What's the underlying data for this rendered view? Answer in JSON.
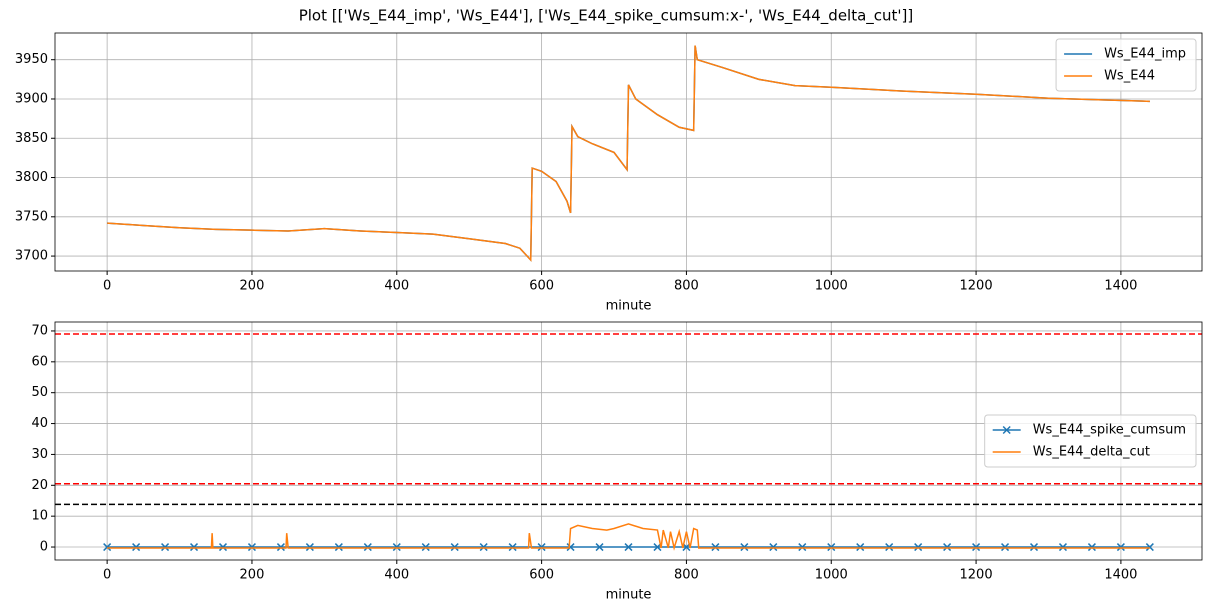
{
  "title": "Plot [['Ws_E44_imp', 'Ws_E44'], ['Ws_E44_spike_cumsum:x-', 'Ws_E44_delta_cut']]",
  "chart_data": [
    {
      "type": "line",
      "xlabel": "minute",
      "grid": true,
      "legend": "upper right",
      "xlim": [
        -72,
        1512
      ],
      "xticks": [
        0,
        200,
        400,
        600,
        800,
        1000,
        1200,
        1400
      ],
      "ylim": [
        3681,
        3984
      ],
      "yticks": [
        3700,
        3750,
        3800,
        3850,
        3900,
        3950
      ],
      "x": [
        0,
        50,
        100,
        150,
        200,
        250,
        300,
        350,
        400,
        450,
        500,
        550,
        570,
        585,
        587,
        600,
        620,
        635,
        640,
        642,
        650,
        670,
        700,
        718,
        720,
        730,
        760,
        790,
        810,
        812,
        815,
        850,
        900,
        950,
        1000,
        1100,
        1200,
        1300,
        1440
      ],
      "series": [
        {
          "name": "Ws_E44_imp",
          "color": "#1f77b4",
          "values": [
            3742,
            3739,
            3736,
            3734,
            3733,
            3732,
            3735,
            3732,
            3730,
            3728,
            3722,
            3716,
            3710,
            3695,
            3812,
            3808,
            3795,
            3770,
            3755,
            3865,
            3852,
            3843,
            3832,
            3810,
            3918,
            3900,
            3880,
            3864,
            3860,
            3968,
            3950,
            3940,
            3925,
            3917,
            3915,
            3910,
            3906,
            3901,
            3897
          ]
        },
        {
          "name": "Ws_E44",
          "color": "#ff7f0e",
          "values": [
            3742,
            3739,
            3736,
            3734,
            3733,
            3732,
            3735,
            3732,
            3730,
            3728,
            3722,
            3716,
            3710,
            3695,
            3812,
            3808,
            3795,
            3770,
            3755,
            3865,
            3852,
            3843,
            3832,
            3810,
            3918,
            3900,
            3880,
            3864,
            3860,
            3968,
            3950,
            3940,
            3925,
            3917,
            3915,
            3910,
            3906,
            3901,
            3897
          ]
        }
      ]
    },
    {
      "type": "line",
      "xlabel": "minute",
      "grid": true,
      "legend": "center right",
      "xlim": [
        -72,
        1512
      ],
      "xticks": [
        0,
        200,
        400,
        600,
        800,
        1000,
        1200,
        1400
      ],
      "ylim": [
        -4.2,
        72.9
      ],
      "yticks": [
        0,
        10,
        20,
        30,
        40,
        50,
        60,
        70
      ],
      "reference_lines": [
        {
          "value": 69,
          "color": "#ff0000"
        },
        {
          "value": 20.5,
          "color": "#ff0000"
        },
        {
          "value": 13.8,
          "color": "#000000"
        }
      ],
      "series": [
        {
          "name": "Ws_E44_spike_cumsum",
          "color": "#1f77b4",
          "marker": "x",
          "x": [
            0,
            40,
            80,
            120,
            160,
            200,
            240,
            280,
            320,
            360,
            400,
            440,
            480,
            520,
            560,
            600,
            640,
            680,
            720,
            760,
            800,
            840,
            880,
            920,
            960,
            1000,
            1040,
            1080,
            1120,
            1160,
            1200,
            1240,
            1280,
            1320,
            1360,
            1400,
            1440
          ],
          "values": [
            0,
            0,
            0,
            0,
            0,
            0,
            0,
            0,
            0,
            0,
            0,
            0,
            0,
            0,
            0,
            0,
            0,
            0,
            0,
            0,
            0,
            0,
            0,
            0,
            0,
            0,
            0,
            0,
            0,
            0,
            0,
            0,
            0,
            0,
            0,
            0,
            0
          ]
        },
        {
          "name": "Ws_E44_delta_cut",
          "color": "#ff7f0e",
          "x": [
            0,
            144,
            145,
            146,
            247,
            248,
            250,
            582,
            583,
            586,
            638,
            640,
            650,
            670,
            690,
            700,
            720,
            740,
            760,
            765,
            768,
            775,
            778,
            783,
            790,
            795,
            800,
            805,
            810,
            815,
            817,
            1440
          ],
          "values": [
            -0.3,
            -0.3,
            4.5,
            -0.3,
            -0.3,
            4.5,
            -0.3,
            -0.3,
            4.5,
            -0.3,
            -0.3,
            6,
            7,
            6,
            5.5,
            6,
            7.5,
            6,
            5.5,
            -0.3,
            5.5,
            -0.3,
            5,
            -0.3,
            5,
            -0.3,
            5,
            -0.3,
            6,
            5.5,
            -0.3,
            -0.3
          ]
        }
      ]
    }
  ]
}
